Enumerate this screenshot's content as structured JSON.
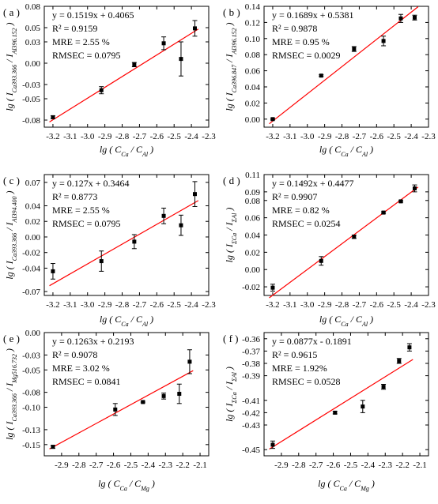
{
  "chart_data": [
    {
      "type": "scatter",
      "panel_label": "( a )",
      "x": [
        -3.2,
        -2.92,
        -2.73,
        -2.56,
        -2.46,
        -2.38
      ],
      "y": [
        -0.076,
        -0.038,
        -0.002,
        0.028,
        0.006,
        0.049
      ],
      "yerr": [
        0.002,
        0.005,
        0.003,
        0.009,
        0.024,
        0.011
      ],
      "fit": {
        "slope": 0.1519,
        "intercept": 0.4065
      },
      "annotations": [
        "y = 0.1519x + 0.4065",
        "R² = 0.9159",
        "MRE = 2.55 %",
        "RMSEC = 0.0795"
      ],
      "xlabel": {
        "lg": "lg",
        "num": "C",
        "num_sub": "Ca",
        "den": "C",
        "den_sub": "Al"
      },
      "ylabel": {
        "lg": "lg",
        "num": "I",
        "num_sub": "Ca393.366",
        "den": "I",
        "den_sub": "Al396.152"
      },
      "xlim": [
        -3.25,
        -2.3
      ],
      "ylim": [
        -0.09,
        0.08
      ],
      "xticks": [
        -3.2,
        -3.1,
        -3.0,
        -2.9,
        -2.8,
        -2.7,
        -2.6,
        -2.5,
        -2.4,
        -2.3
      ],
      "yticks": [
        -0.08,
        -0.05,
        -0.03,
        0.0,
        0.03,
        0.05,
        0.08
      ],
      "ytick_labels": [
        "-0.08",
        "-0.05",
        "-0.03",
        "0.00",
        "0.03",
        "0.05",
        "0.08"
      ]
    },
    {
      "type": "scatter",
      "panel_label": "( b )",
      "x": [
        -3.2,
        -2.92,
        -2.73,
        -2.56,
        -2.46,
        -2.38
      ],
      "y": [
        0.0,
        0.054,
        0.087,
        0.097,
        0.125,
        0.126
      ],
      "yerr": [
        0.001,
        0.001,
        0.003,
        0.006,
        0.005,
        0.003
      ],
      "fit": {
        "slope": 0.1689,
        "intercept": 0.5381
      },
      "annotations": [
        "y = 0.1689x + 0.5381",
        "R² = 0.9878",
        "MRE = 0.95 %",
        "RMSEC = 0.0029"
      ],
      "xlabel": {
        "lg": "lg",
        "num": "C",
        "num_sub": "Ca",
        "den": "C",
        "den_sub": "Al"
      },
      "ylabel": {
        "lg": "lg",
        "num": "I",
        "num_sub": "Ca396.847",
        "den": "I",
        "den_sub": "Al396.152"
      },
      "xlim": [
        -3.25,
        -2.3
      ],
      "ylim": [
        -0.01,
        0.14
      ],
      "xticks": [
        -3.2,
        -3.1,
        -3.0,
        -2.9,
        -2.8,
        -2.7,
        -2.6,
        -2.5,
        -2.4,
        -2.3
      ],
      "yticks": [
        0.0,
        0.02,
        0.04,
        0.06,
        0.08,
        0.1,
        0.12,
        0.14
      ],
      "ytick_labels": [
        "0.00",
        "0.02",
        "0.04",
        "0.06",
        "0.08",
        "0.10",
        "0.12",
        "0.14"
      ]
    },
    {
      "type": "scatter",
      "panel_label": "( c )",
      "x": [
        -3.2,
        -2.92,
        -2.73,
        -2.56,
        -2.46,
        -2.38
      ],
      "y": [
        -0.044,
        -0.031,
        -0.006,
        0.027,
        0.015,
        0.055
      ],
      "yerr": [
        0.01,
        0.013,
        0.009,
        0.01,
        0.013,
        0.016
      ],
      "fit": {
        "slope": 0.127,
        "intercept": 0.3464
      },
      "annotations": [
        "y = 0.127x + 0.3464",
        "R² = 0.8773",
        "MRE = 2.55 %",
        "RMSEC = 0.0795"
      ],
      "xlabel": {
        "lg": "lg",
        "num": "C",
        "num_sub": "Ca",
        "den": "C",
        "den_sub": "Al"
      },
      "ylabel": {
        "lg": "lg",
        "num": "I",
        "num_sub": "Ca393.366",
        "den": "I",
        "den_sub": "Al394.400"
      },
      "xlim": [
        -3.25,
        -2.3
      ],
      "ylim": [
        -0.075,
        0.08
      ],
      "xticks": [
        -3.2,
        -3.1,
        -3.0,
        -2.9,
        -2.8,
        -2.7,
        -2.6,
        -2.5,
        -2.4,
        -2.3
      ],
      "yticks": [
        -0.07,
        -0.04,
        -0.02,
        0.0,
        0.02,
        0.04,
        0.07
      ],
      "ytick_labels": [
        "-0.07",
        "-0.04",
        "-0.02",
        "0.00",
        "0.02",
        "0.04",
        "0.07"
      ]
    },
    {
      "type": "scatter",
      "panel_label": "( d )",
      "x": [
        -3.2,
        -2.92,
        -2.73,
        -2.56,
        -2.46,
        -2.38
      ],
      "y": [
        -0.021,
        0.01,
        0.038,
        0.066,
        0.079,
        0.094
      ],
      "yerr": [
        0.004,
        0.005,
        0.002,
        0.001,
        0.001,
        0.004
      ],
      "fit": {
        "slope": 0.1492,
        "intercept": 0.4477
      },
      "annotations": [
        "y = 0.1492x + 0.4477",
        "R² = 0.9907",
        "MRE = 0.82 %",
        "RMSEC = 0.0254"
      ],
      "xlabel": {
        "lg": "lg",
        "num": "C",
        "num_sub": "Ca",
        "den": "C",
        "den_sub": "Al"
      },
      "ylabel": {
        "lg": "lg",
        "num": "I",
        "num_sub": "ΣCa",
        "den": "I",
        "den_sub": "ΣAl"
      },
      "xlim": [
        -3.25,
        -2.3
      ],
      "ylim": [
        -0.03,
        0.11
      ],
      "xticks": [
        -3.2,
        -3.1,
        -3.0,
        -2.9,
        -2.8,
        -2.7,
        -2.6,
        -2.5,
        -2.4,
        -2.3
      ],
      "yticks": [
        -0.02,
        0.0,
        0.02,
        0.04,
        0.06,
        0.08,
        0.09,
        0.11
      ],
      "ytick_labels": [
        "-0.02",
        "0.00",
        "0.02",
        "0.04",
        "0.06",
        "0.08",
        "0.09",
        "0.11"
      ]
    },
    {
      "type": "scatter",
      "panel_label": "( e )",
      "x": [
        -2.95,
        -2.59,
        -2.43,
        -2.31,
        -2.22,
        -2.16
      ],
      "y": [
        -0.153,
        -0.103,
        -0.093,
        -0.085,
        -0.082,
        -0.039
      ],
      "yerr": [
        0.002,
        0.008,
        0.001,
        0.004,
        0.013,
        0.016
      ],
      "fit": {
        "slope": 0.1263,
        "intercept": 0.2193
      },
      "annotations": [
        "y = 0.1263x + 0.2193",
        "R² = 0.9078",
        "MRE = 3.02 %",
        "RMSEC = 0.0841"
      ],
      "xlabel": {
        "lg": "lg",
        "num": "C",
        "num_sub": "Ca",
        "den": "C",
        "den_sub": "Mg"
      },
      "ylabel": {
        "lg": "lg",
        "num": "I",
        "num_sub": "Ca393.366",
        "den": "I",
        "den_sub": "Mg516.732"
      },
      "xlim": [
        -3.0,
        -2.05
      ],
      "ylim": [
        -0.165,
        0.0
      ],
      "xticks": [
        -2.9,
        -2.8,
        -2.7,
        -2.6,
        -2.5,
        -2.4,
        -2.3,
        -2.2,
        -2.1
      ],
      "yticks": [
        0.0,
        -0.03,
        -0.05,
        -0.08,
        -0.1,
        -0.13,
        -0.15
      ],
      "ytick_labels": [
        "0.00",
        "-0.03",
        "-0.05",
        "-0.08",
        "-0.10",
        "-0.13",
        "-0.15"
      ]
    },
    {
      "type": "scatter",
      "panel_label": "( f )",
      "x": [
        -2.95,
        -2.59,
        -2.43,
        -2.31,
        -2.22,
        -2.16
      ],
      "y": [
        -0.446,
        -0.42,
        -0.415,
        -0.399,
        -0.378,
        -0.367
      ],
      "yerr": [
        0.003,
        0.001,
        0.005,
        0.002,
        0.002,
        0.003
      ],
      "fit": {
        "slope": 0.0877,
        "intercept": -0.1891
      },
      "annotations": [
        "y = 0.0877x - 0.1891",
        "R² = 0.9615",
        "MRE = 1.92%",
        "RMSEC = 0.0528"
      ],
      "xlabel": {
        "lg": "lg",
        "num": "C",
        "num_sub": "Ca",
        "den": "C",
        "den_sub": "Mg"
      },
      "ylabel": {
        "lg": "lg",
        "num": "I",
        "num_sub": "ΣCa",
        "den": "I",
        "den_sub": "ΣAl"
      },
      "xlim": [
        -3.0,
        -2.05
      ],
      "ylim": [
        -0.455,
        -0.355
      ],
      "xticks": [
        -2.9,
        -2.8,
        -2.7,
        -2.6,
        -2.5,
        -2.4,
        -2.3,
        -2.2,
        -2.1
      ],
      "yticks": [
        -0.45,
        -0.43,
        -0.42,
        -0.41,
        -0.39,
        -0.38,
        -0.37,
        -0.36
      ],
      "ytick_labels": [
        "-0.45",
        "-0.43",
        "-0.42",
        "-0.41",
        "-0.39",
        "-0.38",
        "-0.37",
        "-0.36"
      ]
    }
  ],
  "colors": {
    "fit_line": "#ff0000",
    "marker": "#000000",
    "axis": "#000000"
  }
}
